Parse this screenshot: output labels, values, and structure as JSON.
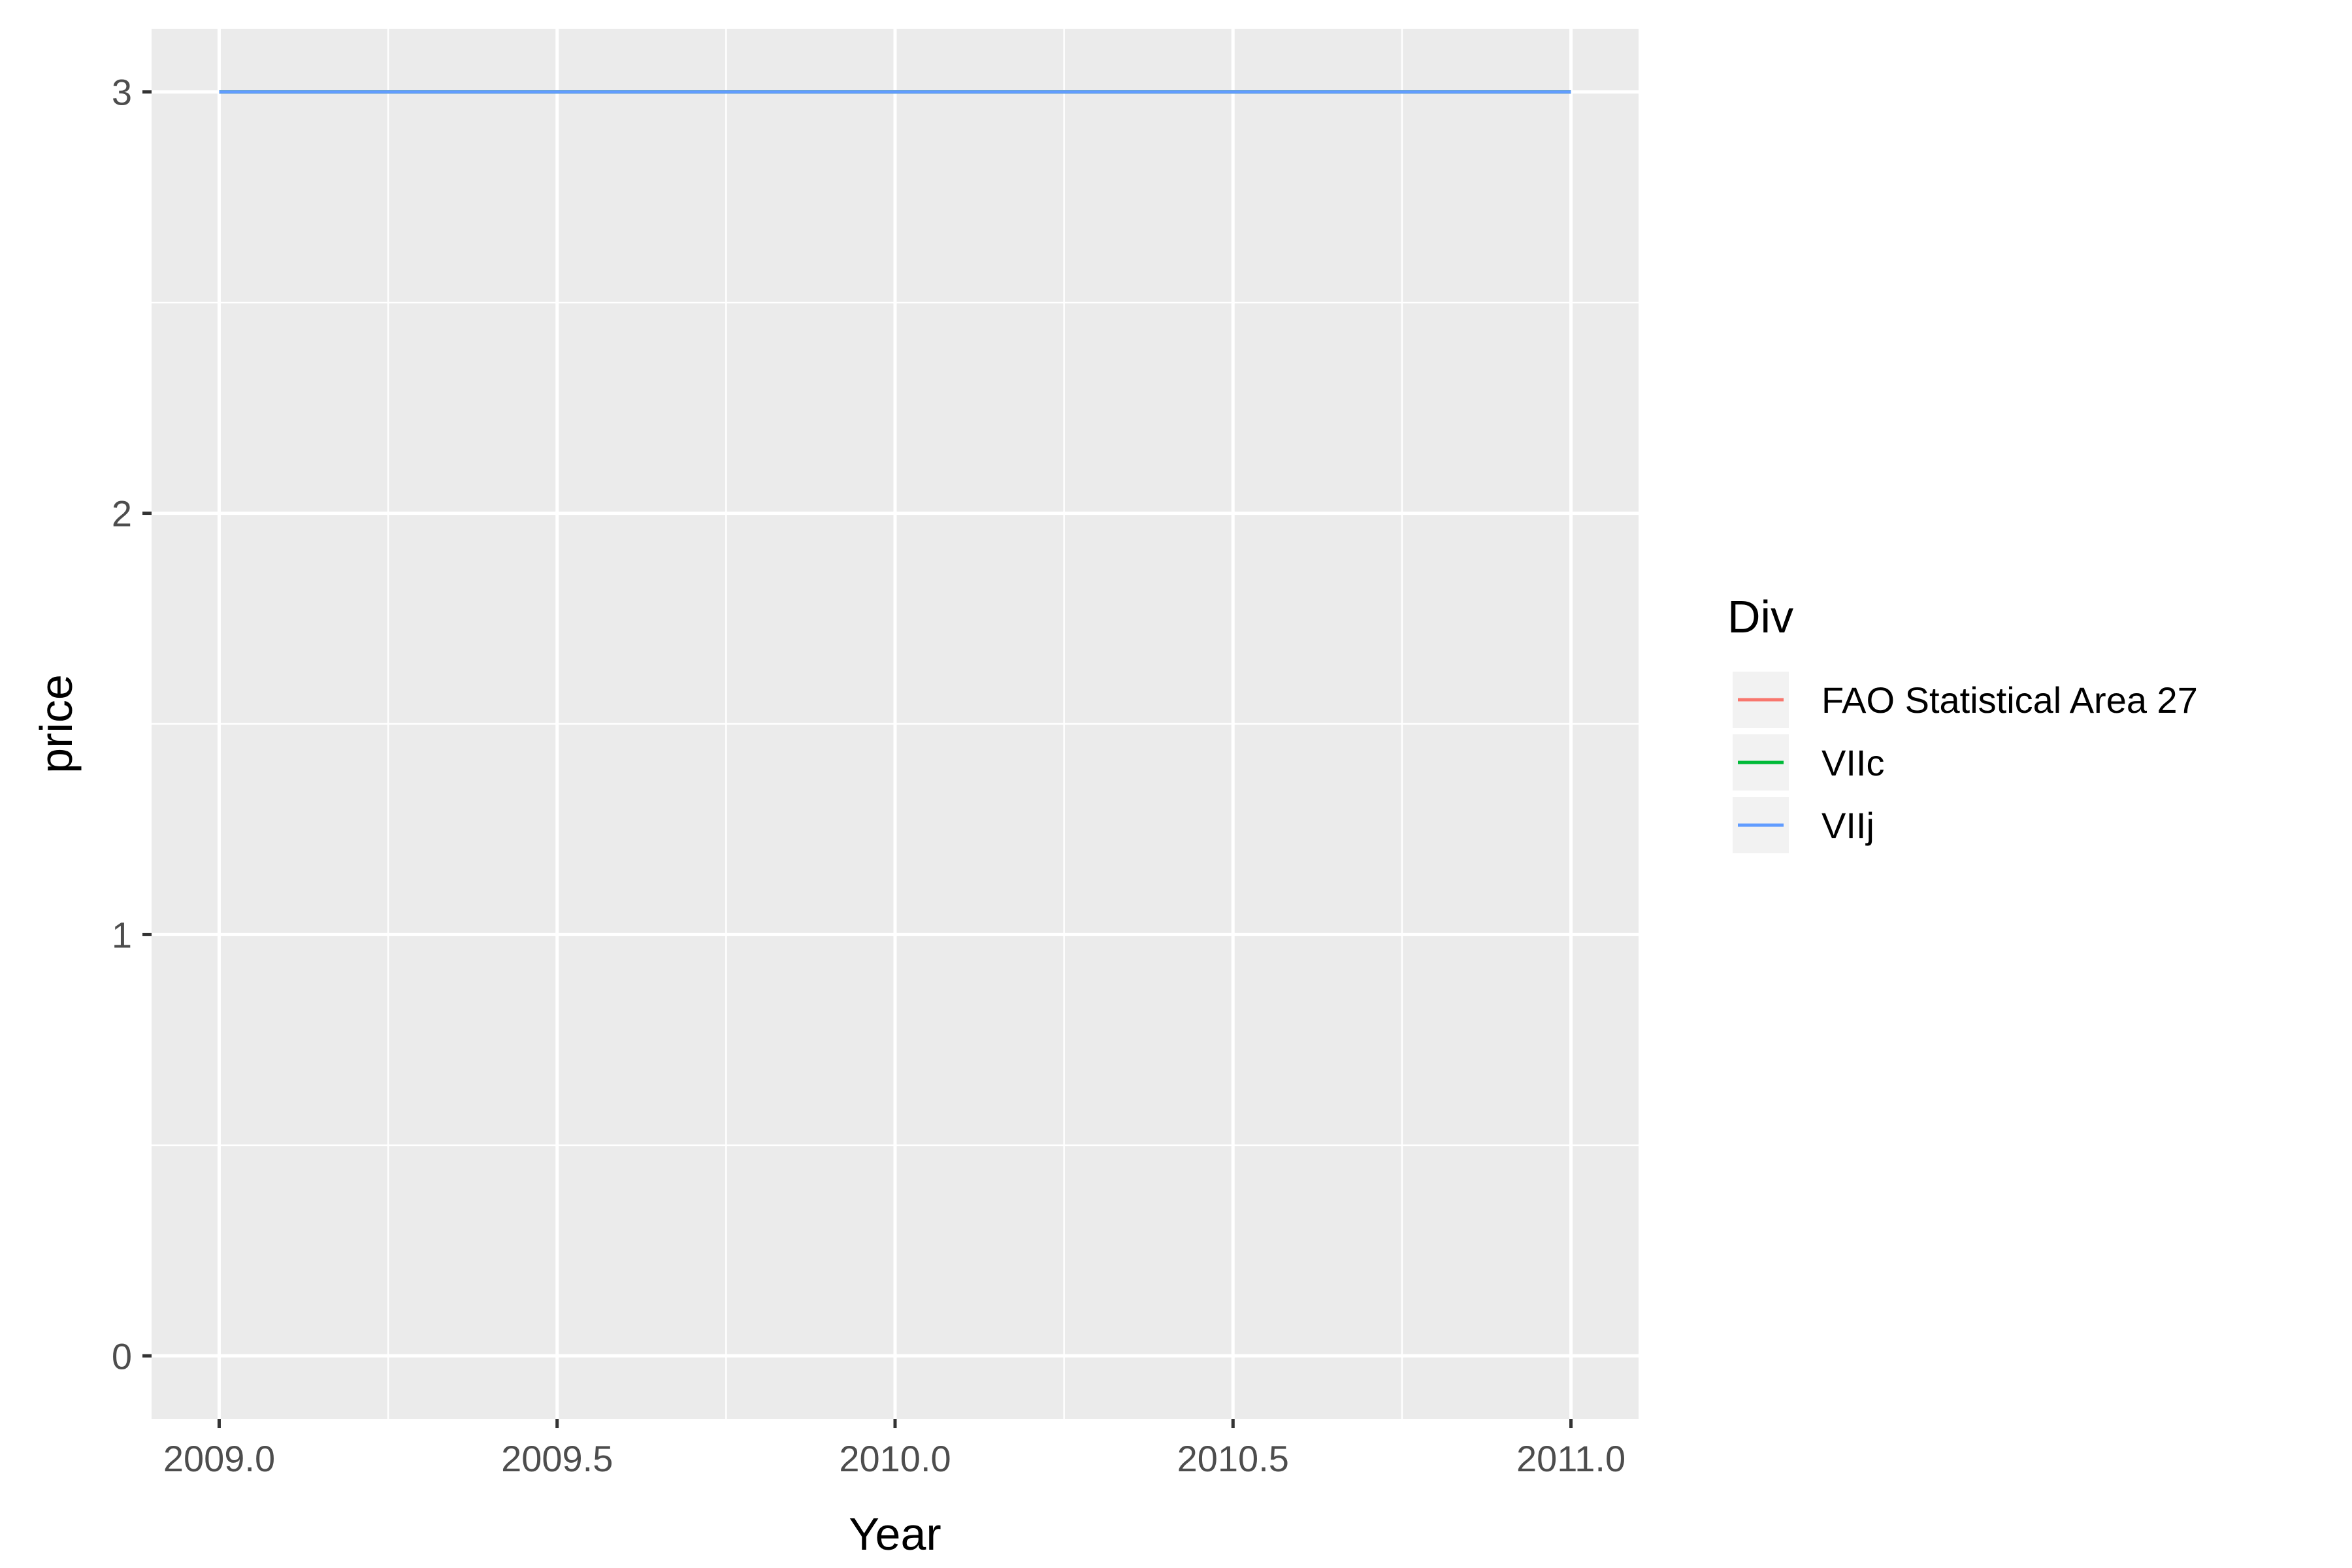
{
  "chart_data": {
    "type": "line",
    "title": "",
    "xlabel": "Year",
    "ylabel": "price",
    "xlim": [
      2008.9,
      2011.1
    ],
    "ylim": [
      -0.15,
      3.15
    ],
    "x_ticks": [
      2009.0,
      2009.5,
      2010.0,
      2010.5,
      2011.0
    ],
    "x_tick_labels": [
      "2009.0",
      "2009.5",
      "2010.0",
      "2010.5",
      "2011.0"
    ],
    "y_ticks": [
      0,
      1,
      2,
      3
    ],
    "y_tick_labels": [
      "0",
      "1",
      "2",
      "3"
    ],
    "grid": true,
    "legend_position": "right",
    "legend_title": "Div",
    "series": [
      {
        "name": "FAO Statistical Area 27",
        "color": "#F8766D",
        "points": [
          [
            2009.0,
            3
          ],
          [
            2010.0,
            3
          ],
          [
            2011.0,
            3
          ]
        ]
      },
      {
        "name": "VIIc",
        "color": "#00BA38",
        "points": [
          [
            2009.0,
            3
          ],
          [
            2010.0,
            3
          ],
          [
            2011.0,
            3
          ]
        ]
      },
      {
        "name": "VIIj",
        "color": "#619CFF",
        "points": [
          [
            2009.0,
            3
          ],
          [
            2010.0,
            3
          ],
          [
            2011.0,
            3
          ]
        ]
      }
    ],
    "colors": {
      "panel_background": "#EBEBEB",
      "grid": "#FFFFFF",
      "tick": "#333333",
      "tick_label": "#4D4D4D",
      "legend_key_background": "#F2F2F2"
    }
  }
}
